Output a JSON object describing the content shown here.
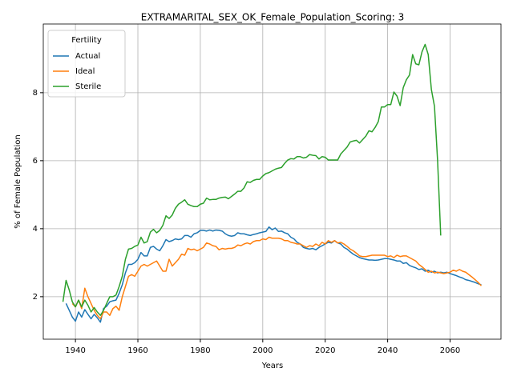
{
  "chart_data": {
    "type": "line",
    "title": "EXTRAMARITAL_SEX_OK_Female_Population_Scoring: 3",
    "xlabel": "Years",
    "ylabel": "% of Female Population",
    "legend_title": "Fertility",
    "legend": "upper left",
    "grid": true,
    "xlim": [
      1929.7,
      2076.3
    ],
    "ylim": [
      0.75,
      10.02
    ],
    "xticks": [
      1940,
      1960,
      1980,
      2000,
      2020,
      2040,
      2060
    ],
    "yticks": [
      2,
      4,
      6,
      8
    ],
    "x": [
      1936,
      1937,
      1938,
      1939,
      1940,
      1941,
      1942,
      1943,
      1944,
      1945,
      1946,
      1947,
      1948,
      1949,
      1950,
      1951,
      1952,
      1953,
      1954,
      1955,
      1956,
      1957,
      1958,
      1959,
      1960,
      1961,
      1962,
      1963,
      1964,
      1965,
      1966,
      1967,
      1968,
      1969,
      1970,
      1971,
      1972,
      1973,
      1974,
      1975,
      1976,
      1977,
      1978,
      1979,
      1980,
      1981,
      1982,
      1983,
      1984,
      1985,
      1986,
      1987,
      1988,
      1989,
      1990,
      1991,
      1992,
      1993,
      1994,
      1995,
      1996,
      1997,
      1998,
      1999,
      2000,
      2001,
      2002,
      2003,
      2004,
      2005,
      2006,
      2007,
      2008,
      2009,
      2010,
      2011,
      2012,
      2013,
      2014,
      2015,
      2016,
      2017,
      2018,
      2019,
      2020,
      2021,
      2022,
      2023,
      2024,
      2025,
      2026,
      2027,
      2028,
      2029,
      2030,
      2031,
      2032,
      2033,
      2034,
      2035,
      2036,
      2037,
      2038,
      2039,
      2040,
      2041,
      2042,
      2043,
      2044,
      2045,
      2046,
      2047,
      2048,
      2049,
      2050,
      2051,
      2052,
      2053,
      2054,
      2055,
      2056,
      2057,
      2058,
      2059,
      2060,
      2061,
      2062,
      2063,
      2064,
      2065,
      2066,
      2067,
      2068,
      2069,
      2070
    ],
    "series": [
      {
        "name": "Actual",
        "color": "#1f77b4",
        "values": [
          null,
          1.8,
          1.6,
          1.4,
          1.28,
          1.55,
          1.4,
          1.62,
          1.48,
          1.35,
          1.48,
          1.38,
          1.25,
          1.65,
          1.72,
          1.85,
          1.88,
          1.9,
          2.1,
          2.35,
          2.7,
          2.95,
          2.95,
          3.0,
          3.1,
          3.3,
          3.2,
          3.2,
          3.45,
          3.48,
          3.4,
          3.35,
          3.5,
          3.68,
          3.62,
          3.65,
          3.7,
          3.68,
          3.7,
          3.8,
          3.8,
          3.75,
          3.85,
          3.88,
          3.95,
          3.95,
          3.93,
          3.96,
          3.93,
          3.96,
          3.95,
          3.93,
          3.85,
          3.8,
          3.78,
          3.8,
          3.88,
          3.85,
          3.85,
          3.82,
          3.8,
          3.83,
          3.85,
          3.88,
          3.9,
          3.92,
          4.05,
          3.97,
          4.02,
          3.92,
          3.93,
          3.88,
          3.85,
          3.75,
          3.7,
          3.6,
          3.55,
          3.45,
          3.42,
          3.4,
          3.42,
          3.38,
          3.45,
          3.5,
          3.55,
          3.6,
          3.58,
          3.65,
          3.58,
          3.55,
          3.45,
          3.4,
          3.32,
          3.25,
          3.2,
          3.15,
          3.12,
          3.1,
          3.08,
          3.08,
          3.07,
          3.08,
          3.1,
          3.12,
          3.12,
          3.1,
          3.08,
          3.05,
          3.05,
          2.98,
          3.0,
          2.92,
          2.88,
          2.85,
          2.8,
          2.82,
          2.75,
          2.78,
          2.72,
          2.75,
          2.7,
          2.72,
          2.7,
          2.72,
          2.68,
          2.65,
          2.62,
          2.58,
          2.55,
          2.5,
          2.48,
          2.45,
          2.42,
          2.38,
          2.35
        ]
      },
      {
        "name": "Ideal",
        "color": "#ff7f0e",
        "values": [
          null,
          null,
          null,
          1.8,
          1.7,
          1.9,
          1.65,
          2.25,
          2.0,
          1.8,
          1.6,
          1.45,
          1.35,
          1.55,
          1.55,
          1.45,
          1.65,
          1.72,
          1.6,
          2.0,
          2.3,
          2.6,
          2.65,
          2.6,
          2.75,
          2.9,
          2.95,
          2.9,
          2.95,
          3.0,
          3.05,
          2.9,
          2.75,
          2.75,
          3.1,
          2.9,
          3.0,
          3.1,
          3.25,
          3.22,
          3.42,
          3.38,
          3.4,
          3.35,
          3.4,
          3.45,
          3.58,
          3.55,
          3.5,
          3.48,
          3.38,
          3.42,
          3.4,
          3.42,
          3.42,
          3.45,
          3.52,
          3.5,
          3.55,
          3.58,
          3.55,
          3.62,
          3.65,
          3.65,
          3.7,
          3.68,
          3.75,
          3.72,
          3.72,
          3.72,
          3.7,
          3.65,
          3.65,
          3.6,
          3.58,
          3.55,
          3.55,
          3.5,
          3.45,
          3.5,
          3.48,
          3.55,
          3.5,
          3.6,
          3.55,
          3.65,
          3.6,
          3.65,
          3.58,
          3.6,
          3.55,
          3.48,
          3.4,
          3.35,
          3.28,
          3.2,
          3.18,
          3.18,
          3.2,
          3.22,
          3.22,
          3.22,
          3.22,
          3.22,
          3.18,
          3.2,
          3.15,
          3.22,
          3.18,
          3.2,
          3.2,
          3.15,
          3.1,
          3.05,
          2.95,
          2.88,
          2.8,
          2.72,
          2.75,
          2.7,
          2.72,
          2.7,
          2.68,
          2.7,
          2.72,
          2.78,
          2.75,
          2.8,
          2.75,
          2.72,
          2.65,
          2.58,
          2.5,
          2.42,
          2.32
        ]
      },
      {
        "name": "Sterile",
        "color": "#2ca02c",
        "values": [
          1.85,
          2.48,
          2.2,
          1.85,
          1.7,
          1.9,
          1.7,
          1.9,
          1.75,
          1.55,
          1.68,
          1.55,
          1.45,
          1.6,
          1.8,
          2.0,
          2.0,
          2.05,
          2.3,
          2.6,
          3.1,
          3.4,
          3.42,
          3.48,
          3.52,
          3.75,
          3.58,
          3.62,
          3.9,
          3.98,
          3.88,
          3.95,
          4.1,
          4.38,
          4.3,
          4.4,
          4.6,
          4.72,
          4.78,
          4.85,
          4.72,
          4.68,
          4.65,
          4.65,
          4.72,
          4.75,
          4.9,
          4.85,
          4.86,
          4.86,
          4.9,
          4.92,
          4.93,
          4.88,
          4.95,
          5.02,
          5.1,
          5.1,
          5.2,
          5.38,
          5.36,
          5.42,
          5.45,
          5.45,
          5.55,
          5.62,
          5.65,
          5.7,
          5.75,
          5.78,
          5.8,
          5.92,
          6.02,
          6.06,
          6.05,
          6.12,
          6.12,
          6.08,
          6.1,
          6.18,
          6.16,
          6.15,
          6.05,
          6.12,
          6.1,
          6.02,
          6.02,
          6.02,
          6.02,
          6.2,
          6.3,
          6.4,
          6.55,
          6.58,
          6.6,
          6.52,
          6.62,
          6.72,
          6.88,
          6.85,
          6.98,
          7.15,
          7.58,
          7.58,
          7.65,
          7.65,
          8.02,
          7.9,
          7.62,
          8.15,
          8.38,
          8.52,
          9.12,
          8.85,
          8.82,
          9.2,
          9.42,
          9.12,
          8.1,
          7.6,
          6.0,
          3.8,
          null,
          null,
          null,
          null,
          null,
          null,
          null,
          null,
          null,
          null,
          null,
          null,
          null
        ]
      }
    ]
  }
}
